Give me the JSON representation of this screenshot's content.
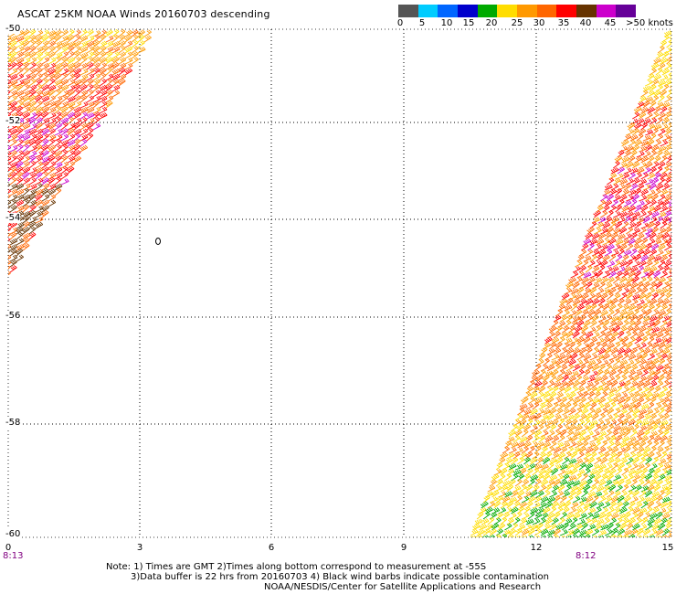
{
  "title": "ASCAT 25KM NOAA Winds 20160703 descending",
  "colorbar": {
    "colors": [
      "#555555",
      "#00ccff",
      "#0066ff",
      "#0000cc",
      "#00aa00",
      "#ffdd00",
      "#ff9900",
      "#ff6600",
      "#ff0000",
      "#663300",
      "#cc00cc",
      "#660099"
    ],
    "ticks": [
      "0",
      "5",
      "10",
      "15",
      "20",
      "25",
      "30",
      "35",
      "40",
      "45"
    ],
    "max_label": ">50 knots"
  },
  "map": {
    "lat_labels": [
      "-50",
      "-52",
      "-54",
      "-56",
      "-58",
      "-60"
    ],
    "lon_labels": [
      "0",
      "3",
      "6",
      "9",
      "12",
      "15"
    ],
    "lat_range": [
      -60,
      -50
    ],
    "lon_range": [
      0,
      15
    ],
    "grid": "dotted",
    "contour_label": "0",
    "pass_time_labels": [
      "8:13",
      "8:12"
    ]
  },
  "notes": {
    "line1": "Note: 1) Times are GMT 2)Times along bottom correspond to measurement at  -55S",
    "line2": "3)Data buffer is 22 hrs from 20160703 4) Black wind barbs indicate possible contamination",
    "line3": "NOAA/NESDIS/Center for Satellite Applications and Research"
  }
}
